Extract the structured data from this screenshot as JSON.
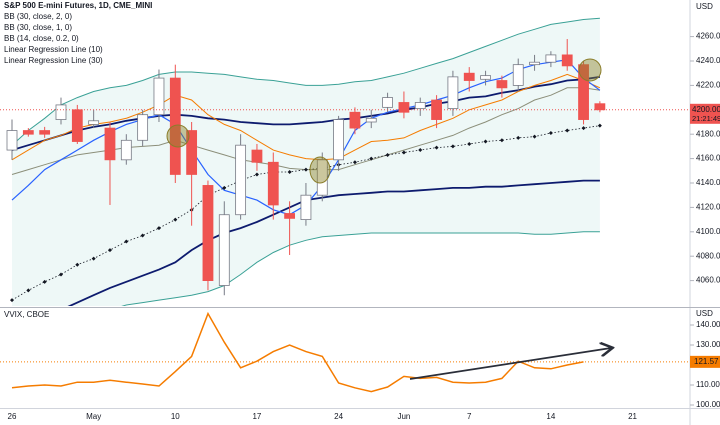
{
  "chart_data": [
    {
      "type": "candlestick",
      "title": "S&P 500 E-mini Futures, 1D, CME_MINI",
      "unit": "USD",
      "up_color": "#ffffff",
      "up_border": "#787b86",
      "down_color": "#ef5350",
      "open": [
        4167,
        4183,
        4183,
        4192,
        4200,
        4188,
        4185,
        4159,
        4175,
        4196,
        4226,
        4183,
        4138,
        4056,
        4114,
        4167,
        4157,
        4115,
        4110,
        4130,
        4159,
        4198,
        4190,
        4202,
        4206,
        4201,
        4208,
        4201,
        4230,
        4225,
        4224,
        4220,
        4237,
        4239,
        4245,
        4237,
        4205,
        null,
        null
      ],
      "high": [
        4192,
        4185,
        4186,
        4210,
        4204,
        4200,
        4190,
        4180,
        4200,
        4233,
        4237,
        4190,
        4142,
        4125,
        4180,
        4172,
        4165,
        4125,
        4140,
        4165,
        4195,
        4202,
        4200,
        4214,
        4215,
        4210,
        4212,
        4232,
        4235,
        4232,
        4228,
        4242,
        4245,
        4248,
        4258,
        4240,
        4207,
        null,
        null
      ],
      "low": [
        4159,
        4178,
        4177,
        4188,
        4172,
        4185,
        4122,
        4155,
        4170,
        4190,
        4140,
        4105,
        4052,
        4048,
        4110,
        4150,
        4110,
        4081,
        4105,
        4125,
        4150,
        4180,
        4185,
        4198,
        4193,
        4195,
        4185,
        4195,
        4215,
        4220,
        4210,
        4215,
        4232,
        4235,
        4232,
        4188,
        4198,
        null,
        null
      ],
      "close": [
        4183,
        4180,
        4180,
        4204,
        4174,
        4191,
        4159,
        4175,
        4196,
        4226,
        4147,
        4147,
        4060,
        4114,
        4171,
        4157,
        4122,
        4111,
        4130,
        4159,
        4192,
        4185,
        4193,
        4210,
        4198,
        4206,
        4192,
        4227,
        4224,
        4228,
        4218,
        4237,
        4239,
        4245,
        4236,
        4192,
        4200,
        null,
        null
      ],
      "series": [
        {
          "name": "BB (30, close, 2, 0)",
          "color": "#3aa196",
          "fill": "rgba(38,166,154,0.08)",
          "upper": [
            4171,
            4183,
            4193,
            4204,
            4210,
            4215,
            4218,
            4220,
            4224,
            4229,
            4231,
            4231,
            4230,
            4229,
            4227,
            4225,
            4224,
            4222,
            4220,
            4220,
            4221,
            4223,
            4224,
            4227,
            4230,
            4234,
            4238,
            4242,
            4247,
            4252,
            4257,
            4262,
            4266,
            4270,
            4272,
            4274,
            4275,
            null,
            null
          ],
          "lower": [
            4011,
            4015,
            4019,
            4024,
            4028,
            4032,
            4036,
            4040,
            4042,
            4044,
            4046,
            4048,
            4051,
            4056,
            4065,
            4075,
            4083,
            4089,
            4093,
            4096,
            4097,
            4098,
            4099,
            4099,
            4099,
            4099,
            4099,
            4099,
            4099,
            4099,
            4099,
            4099,
            4098,
            4098,
            4099,
            4100,
            4100,
            null,
            null
          ]
        },
        {
          "name": "BB (30, close, 1, 0)",
          "color": "#0d1b6e",
          "upper": [
            4167,
            4171,
            4175,
            4179,
            4183,
            4186,
            4188,
            4191,
            4193,
            4195,
            4196,
            4195,
            4193,
            4192,
            4190,
            4189,
            4188,
            4188,
            4189,
            4190,
            4192,
            4193,
            4195,
            4197,
            4200,
            4202,
            4205,
            4207,
            4210,
            4211,
            4214,
            4216,
            4219,
            4221,
            4224,
            4225,
            4227,
            null,
            null
          ],
          "lower": [
            4019,
            4024,
            4029,
            4036,
            4042,
            4048,
            4054,
            4059,
            4064,
            4069,
            4075,
            4085,
            4093,
            4099,
            4103,
            4108,
            4114,
            4120,
            4126,
            4128,
            4130,
            4131,
            4132,
            4133,
            4133,
            4134,
            4135,
            4136,
            4136,
            4137,
            4137,
            4138,
            4139,
            4140,
            4141,
            4142,
            4142,
            null,
            null
          ]
        },
        {
          "name": "BB (14, close, 0.2, 0)",
          "color": "#f57c00",
          "lower_color": "#8c8f7a",
          "upper": [
            4159,
            4167,
            4175,
            4179,
            4185,
            4188,
            4190,
            4193,
            4198,
            4204,
            4212,
            4208,
            4196,
            4188,
            4183,
            4175,
            4167,
            4163,
            4160,
            4159,
            4160,
            4167,
            4174,
            4175,
            4177,
            4183,
            4188,
            4193,
            4200,
            4204,
            4208,
            4215,
            4220,
            4224,
            4229,
            4224,
            4218,
            null,
            null
          ],
          "lower": [
            4147,
            4151,
            4155,
            4159,
            4163,
            4165,
            4167,
            4169,
            4170,
            4171,
            4175,
            4171,
            4167,
            4163,
            4159,
            4157,
            4155,
            4152,
            4151,
            4151,
            4151,
            4155,
            4159,
            4163,
            4167,
            4171,
            4175,
            4179,
            4185,
            4190,
            4196,
            4201,
            4208,
            4212,
            4218,
            4218,
            4216,
            null,
            null
          ]
        },
        {
          "name": "Linear Regression Line (10)",
          "color": "#2962ff",
          "values": [
            4126,
            4138,
            4151,
            4159,
            4167,
            4175,
            4182,
            4188,
            4192,
            4196,
            4188,
            4167,
            4147,
            4134,
            4130,
            4126,
            4118,
            4114,
            4122,
            4138,
            4159,
            4183,
            4193,
            4198,
            4201,
            4204,
            4208,
            4212,
            4218,
            4223,
            4226,
            4233,
            4237,
            4239,
            4241,
            4226,
            4216,
            null,
            null
          ]
        },
        {
          "name": "Linear Regression Line (30)",
          "color": "#131722",
          "markers": true,
          "values": [
            4044,
            4052,
            4059,
            4065,
            4073,
            4078,
            4085,
            4092,
            4097,
            4103,
            4110,
            4118,
            4130,
            4136,
            4142,
            4147,
            4149,
            4149,
            4151,
            4152,
            4155,
            4157,
            4160,
            4163,
            4165,
            4167,
            4169,
            4170,
            4172,
            4174,
            4175,
            4177,
            4178,
            4181,
            4183,
            4185,
            4187,
            null,
            null
          ]
        }
      ],
      "last_price": {
        "value": 4200,
        "label": "4200.00"
      },
      "countdown": "21:21:49",
      "ylim": [
        4040,
        4290
      ],
      "yticks": [
        {
          "value": 4260,
          "label": "4260.00"
        },
        {
          "value": 4240,
          "label": "4240.00"
        },
        {
          "value": 4220,
          "label": "4220.00"
        },
        {
          "value": 4180,
          "label": "4180.00"
        },
        {
          "value": 4160,
          "label": "4160.00"
        },
        {
          "value": 4140,
          "label": "4140.00"
        },
        {
          "value": 4120,
          "label": "4120.00"
        },
        {
          "value": 4100,
          "label": "4100.00"
        },
        {
          "value": 4080,
          "label": "4080.00"
        },
        {
          "value": 4060,
          "label": "4060.00"
        }
      ]
    },
    {
      "type": "line",
      "title": "VVIX, CBOE",
      "unit": "USD",
      "color": "#f57c00",
      "categories": [
        "26",
        null,
        null,
        null,
        null,
        "May",
        null,
        null,
        null,
        null,
        "10",
        null,
        null,
        null,
        null,
        "17",
        null,
        null,
        null,
        null,
        "24",
        null,
        null,
        null,
        "Jun",
        null,
        null,
        null,
        "7",
        null,
        null,
        null,
        null,
        "14",
        null,
        null,
        null,
        null,
        "21"
      ],
      "values": [
        108.6,
        109.5,
        110,
        109.5,
        111.4,
        111.4,
        112.4,
        111.4,
        110.5,
        109.5,
        116.7,
        124.3,
        145.7,
        131.4,
        118.6,
        121.9,
        126.7,
        130,
        126.7,
        124.3,
        111,
        108.6,
        106.7,
        109,
        114.3,
        113.3,
        113.8,
        111.4,
        111,
        111.4,
        113.3,
        121.9,
        118.6,
        118.1,
        120,
        121.57,
        null,
        null,
        null
      ],
      "ylim": [
        98.5,
        148
      ],
      "yticks": [
        {
          "value": 140,
          "label": "140.00"
        },
        {
          "value": 130,
          "label": "130.00"
        },
        {
          "value": 110,
          "label": "110.00"
        },
        {
          "value": 100,
          "label": "100.00"
        }
      ]
    }
  ]
}
